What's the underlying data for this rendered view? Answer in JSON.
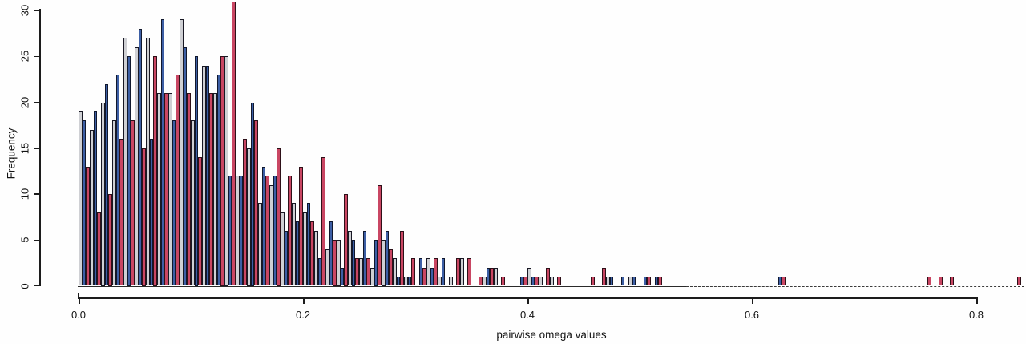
{
  "figure": {
    "ylabel": "Frequency",
    "xlabel": "pairwise omega values"
  },
  "chart_data": {
    "type": "bar",
    "subtype": "grouped-histogram",
    "title": "",
    "xlabel": "pairwise omega values",
    "ylabel": "Frequency",
    "grid": false,
    "legend": "none",
    "bin_start": 0.0,
    "bin_width": 0.01,
    "xlim": [
      0.0,
      0.85
    ],
    "ylim": [
      0,
      30
    ],
    "xtick_values": [
      0.0,
      0.2,
      0.4,
      0.6,
      0.8
    ],
    "xtick_labels": [
      "0.0",
      "0.2",
      "0.4",
      "0.6",
      "0.8"
    ],
    "ytick_values": [
      0,
      5,
      10,
      15,
      20,
      25,
      30
    ],
    "series": [
      {
        "name": "series-gray",
        "color": "#cfd0d4"
      },
      {
        "name": "series-blue",
        "color": "#3d5fa5"
      },
      {
        "name": "series-red",
        "color": "#c94663"
      }
    ],
    "bins": [
      [
        19,
        18,
        13
      ],
      [
        17,
        19,
        8
      ],
      [
        20,
        22,
        10
      ],
      [
        18,
        23,
        16
      ],
      [
        27,
        25,
        18
      ],
      [
        26,
        28,
        15
      ],
      [
        27,
        16,
        25
      ],
      [
        21,
        29,
        21
      ],
      [
        21,
        18,
        23
      ],
      [
        29,
        26,
        21
      ],
      [
        18,
        25,
        14
      ],
      [
        24,
        24,
        21
      ],
      [
        21,
        23,
        25
      ],
      [
        25,
        12,
        31
      ],
      [
        12,
        12,
        16
      ],
      [
        15,
        20,
        18
      ],
      [
        9,
        13,
        12
      ],
      [
        11,
        12,
        15
      ],
      [
        8,
        6,
        12
      ],
      [
        9,
        7,
        13
      ],
      [
        8,
        9,
        7
      ],
      [
        6,
        3,
        14
      ],
      [
        4,
        7,
        5
      ],
      [
        5,
        2,
        10
      ],
      [
        6,
        5,
        3
      ],
      [
        3,
        6,
        3
      ],
      [
        2,
        5,
        11
      ],
      [
        5,
        6,
        4
      ],
      [
        3,
        1,
        6
      ],
      [
        1,
        1,
        3
      ],
      [
        0,
        3,
        2
      ],
      [
        3,
        2,
        3
      ],
      [
        1,
        3,
        0
      ],
      [
        1,
        0,
        3
      ],
      [
        3,
        0,
        3
      ],
      [
        0,
        0,
        1
      ],
      [
        1,
        2,
        2
      ],
      [
        2,
        0,
        1
      ],
      [
        0,
        0,
        0
      ],
      [
        0,
        1,
        1
      ],
      [
        2,
        1,
        1
      ],
      [
        1,
        0,
        2
      ],
      [
        1,
        0,
        1
      ],
      [
        0,
        0,
        0
      ],
      [
        0,
        0,
        0
      ],
      [
        0,
        0,
        1
      ],
      [
        0,
        0,
        2
      ],
      [
        1,
        1,
        0
      ],
      [
        0,
        1,
        0
      ],
      [
        1,
        1,
        0
      ],
      [
        0,
        1,
        1
      ],
      [
        0,
        1,
        1
      ],
      [
        0,
        0,
        0
      ],
      [
        0,
        0,
        0
      ],
      [
        0,
        0,
        0
      ],
      [
        0,
        0,
        0
      ],
      [
        0,
        0,
        0
      ],
      [
        0,
        0,
        0
      ],
      [
        0,
        0,
        0
      ],
      [
        0,
        0,
        0
      ],
      [
        0,
        0,
        0
      ],
      [
        0,
        0,
        0
      ],
      [
        0,
        1,
        1
      ],
      [
        0,
        0,
        0
      ],
      [
        0,
        0,
        0
      ],
      [
        0,
        0,
        0
      ],
      [
        0,
        0,
        0
      ],
      [
        0,
        0,
        0
      ],
      [
        0,
        0,
        0
      ],
      [
        0,
        0,
        0
      ],
      [
        0,
        0,
        0
      ],
      [
        0,
        0,
        0
      ],
      [
        0,
        0,
        0
      ],
      [
        0,
        0,
        0
      ],
      [
        0,
        0,
        0
      ],
      [
        0,
        0,
        1
      ],
      [
        0,
        0,
        1
      ],
      [
        0,
        0,
        1
      ],
      [
        0,
        0,
        0
      ],
      [
        0,
        0,
        0
      ],
      [
        0,
        0,
        0
      ],
      [
        0,
        0,
        0
      ],
      [
        0,
        0,
        0
      ],
      [
        0,
        0,
        1
      ]
    ]
  }
}
